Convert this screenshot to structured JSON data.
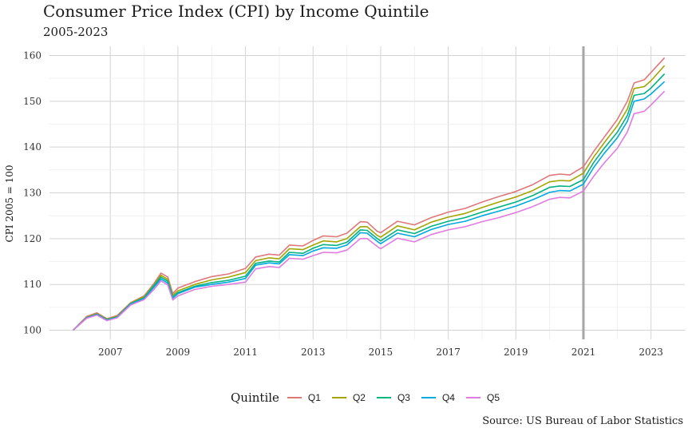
{
  "chart_data": {
    "type": "line",
    "title": "Consumer Price Index (CPI) by Income Quintile",
    "subtitle": "2005-2023",
    "ylabel": "CPI 2005 = 100",
    "caption": "Source: US Bureau of Labor Statistics",
    "legend_title": "Quintile",
    "legend_position": "bottom",
    "grid": true,
    "xlim": [
      2005.2,
      2024.0
    ],
    "ylim": [
      98,
      162
    ],
    "x_ticks": [
      2007,
      2009,
      2011,
      2013,
      2015,
      2017,
      2019,
      2021,
      2023
    ],
    "y_ticks": [
      100,
      110,
      120,
      130,
      140,
      150,
      160
    ],
    "reference_line_x": 2021.0,
    "x": [
      2005.9,
      2006.3,
      2006.6,
      2006.9,
      2007.2,
      2007.6,
      2008.0,
      2008.3,
      2008.5,
      2008.7,
      2008.85,
      2009.0,
      2009.5,
      2010.0,
      2010.5,
      2011.0,
      2011.3,
      2011.7,
      2012.0,
      2012.3,
      2012.7,
      2013.0,
      2013.3,
      2013.7,
      2014.0,
      2014.4,
      2014.6,
      2014.9,
      2015.0,
      2015.5,
      2016.0,
      2016.5,
      2017.0,
      2017.5,
      2018.0,
      2018.5,
      2019.0,
      2019.5,
      2020.0,
      2020.3,
      2020.6,
      2021.0,
      2021.3,
      2021.6,
      2022.0,
      2022.3,
      2022.5,
      2022.8,
      2023.0,
      2023.4
    ],
    "series": [
      {
        "name": "Q1",
        "color": "#E0777A",
        "values": [
          100.0,
          103.0,
          103.8,
          102.5,
          103.2,
          106.0,
          107.5,
          110.3,
          112.5,
          111.6,
          108.0,
          109.2,
          110.6,
          111.7,
          112.3,
          113.5,
          116.0,
          116.6,
          116.4,
          118.6,
          118.4,
          119.6,
          120.6,
          120.4,
          121.2,
          123.7,
          123.6,
          121.6,
          121.3,
          123.8,
          123.0,
          124.6,
          125.8,
          126.6,
          128.0,
          129.2,
          130.3,
          131.8,
          133.8,
          134.1,
          133.9,
          135.7,
          139.0,
          142.0,
          146.0,
          150.0,
          154.0,
          154.7,
          156.3,
          159.5
        ]
      },
      {
        "name": "Q2",
        "color": "#A3A500",
        "values": [
          100.0,
          102.8,
          103.6,
          102.4,
          103.0,
          105.9,
          107.3,
          110.0,
          112.0,
          111.1,
          107.6,
          108.6,
          110.0,
          111.0,
          111.6,
          112.6,
          115.2,
          115.8,
          115.6,
          117.8,
          117.6,
          118.6,
          119.5,
          119.3,
          120.0,
          122.6,
          122.6,
          120.7,
          120.3,
          122.8,
          121.9,
          123.6,
          124.7,
          125.5,
          126.8,
          128.0,
          129.1,
          130.5,
          132.4,
          132.7,
          132.6,
          134.3,
          137.8,
          140.8,
          144.6,
          148.3,
          152.8,
          153.2,
          154.5,
          157.8
        ]
      },
      {
        "name": "Q3",
        "color": "#00B383",
        "values": [
          100.0,
          102.7,
          103.5,
          102.3,
          102.9,
          105.8,
          107.1,
          109.8,
          111.6,
          110.7,
          107.2,
          108.2,
          109.6,
          110.4,
          110.9,
          111.8,
          114.6,
          115.1,
          114.9,
          117.0,
          116.8,
          117.9,
          118.7,
          118.5,
          119.2,
          121.9,
          121.8,
          120.0,
          119.5,
          121.9,
          121.1,
          122.7,
          123.8,
          124.6,
          125.8,
          126.9,
          128.0,
          129.4,
          131.2,
          131.5,
          131.4,
          132.9,
          136.6,
          139.6,
          143.2,
          146.9,
          151.3,
          151.7,
          152.9,
          156.0
        ]
      },
      {
        "name": "Q4",
        "color": "#00A9E0",
        "values": [
          100.0,
          102.7,
          103.4,
          102.2,
          102.8,
          105.7,
          106.9,
          109.5,
          111.2,
          110.3,
          107.0,
          108.0,
          109.4,
          110.0,
          110.5,
          111.3,
          114.2,
          114.7,
          114.5,
          116.5,
          116.3,
          117.3,
          118.0,
          117.9,
          118.6,
          121.3,
          121.2,
          119.4,
          118.9,
          121.2,
          120.4,
          122.0,
          123.1,
          123.8,
          125.0,
          126.0,
          127.1,
          128.5,
          130.1,
          130.5,
          130.4,
          131.9,
          135.5,
          138.5,
          142.0,
          145.6,
          150.0,
          150.5,
          151.6,
          154.3
        ]
      },
      {
        "name": "Q5",
        "color": "#E07BE0",
        "values": [
          100.0,
          102.6,
          103.3,
          102.1,
          102.7,
          105.5,
          106.7,
          109.0,
          110.8,
          109.9,
          106.6,
          107.5,
          108.9,
          109.6,
          110.0,
          110.5,
          113.4,
          113.9,
          113.7,
          115.7,
          115.5,
          116.3,
          117.0,
          116.9,
          117.5,
          120.0,
          120.0,
          118.3,
          117.8,
          120.1,
          119.3,
          120.9,
          121.9,
          122.6,
          123.7,
          124.6,
          125.7,
          127.0,
          128.6,
          129.0,
          128.9,
          130.4,
          133.6,
          136.4,
          139.7,
          143.3,
          147.3,
          147.8,
          149.2,
          152.2
        ]
      }
    ]
  }
}
